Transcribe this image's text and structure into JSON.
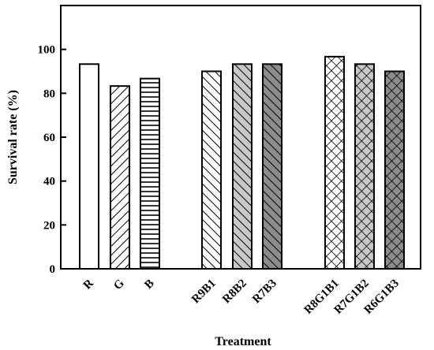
{
  "chart_data": {
    "type": "bar",
    "title": "",
    "xlabel": "Treatment",
    "ylabel": "Survival rate (%)",
    "ylim": [
      0,
      120
    ],
    "yticks": [
      0,
      20,
      40,
      60,
      80,
      100
    ],
    "grid": false,
    "legend": "none",
    "categories": [
      "R",
      "G",
      "B",
      "R9B1",
      "R8B2",
      "R7B3",
      "R8G1B1",
      "R7G1B2",
      "R6G1B3"
    ],
    "values": [
      93.3,
      83.3,
      86.7,
      90.0,
      93.3,
      93.3,
      96.7,
      93.3,
      90.0
    ],
    "groups": [
      [
        "R",
        "G",
        "B"
      ],
      [
        "R9B1",
        "R8B2",
        "R7B3"
      ],
      [
        "R8G1B1",
        "R7G1B2",
        "R6G1B3"
      ]
    ],
    "fills": [
      {
        "pattern": "none",
        "bg": "#ffffff"
      },
      {
        "pattern": "diag-forward",
        "bg": "#ffffff"
      },
      {
        "pattern": "horizontal",
        "bg": "#ffffff"
      },
      {
        "pattern": "diag-back",
        "bg": "#ffffff"
      },
      {
        "pattern": "diag-back",
        "bg": "#c8c8c8"
      },
      {
        "pattern": "diag-back",
        "bg": "#8c8c8c"
      },
      {
        "pattern": "crosshatch",
        "bg": "#ffffff"
      },
      {
        "pattern": "crosshatch",
        "bg": "#c8c8c8"
      },
      {
        "pattern": "crosshatch",
        "bg": "#8c8c8c"
      }
    ]
  }
}
